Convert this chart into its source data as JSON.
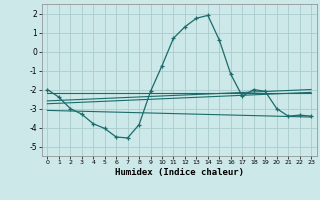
{
  "title": "",
  "xlabel": "Humidex (Indice chaleur)",
  "ylabel": "",
  "bg_color": "#cce8e8",
  "grid_color": "#aacccc",
  "line_color": "#1a6b6b",
  "xlim": [
    -0.5,
    23.5
  ],
  "ylim": [
    -5.5,
    2.5
  ],
  "yticks": [
    -5,
    -4,
    -3,
    -2,
    -1,
    0,
    1,
    2
  ],
  "xticks": [
    0,
    1,
    2,
    3,
    4,
    5,
    6,
    7,
    8,
    9,
    10,
    11,
    12,
    13,
    14,
    15,
    16,
    17,
    18,
    19,
    20,
    21,
    22,
    23
  ],
  "main_x": [
    0,
    1,
    2,
    3,
    4,
    5,
    6,
    7,
    8,
    9,
    10,
    11,
    12,
    13,
    14,
    15,
    16,
    17,
    18,
    19,
    20,
    21,
    22,
    23
  ],
  "main_y": [
    -2.0,
    -2.4,
    -3.0,
    -3.3,
    -3.8,
    -4.05,
    -4.5,
    -4.55,
    -3.85,
    -2.1,
    -0.75,
    0.7,
    1.3,
    1.75,
    1.9,
    0.6,
    -1.2,
    -2.35,
    -2.0,
    -2.1,
    -3.0,
    -3.4,
    -3.35,
    -3.4
  ],
  "line1_x": [
    0,
    23
  ],
  "line1_y": [
    -2.2,
    -2.2
  ],
  "line2_x": [
    0,
    23
  ],
  "line2_y": [
    -2.6,
    -2.0
  ],
  "line3_x": [
    0,
    23
  ],
  "line3_y": [
    -2.75,
    -2.15
  ],
  "line4_x": [
    0,
    23
  ],
  "line4_y": [
    -3.1,
    -3.45
  ]
}
